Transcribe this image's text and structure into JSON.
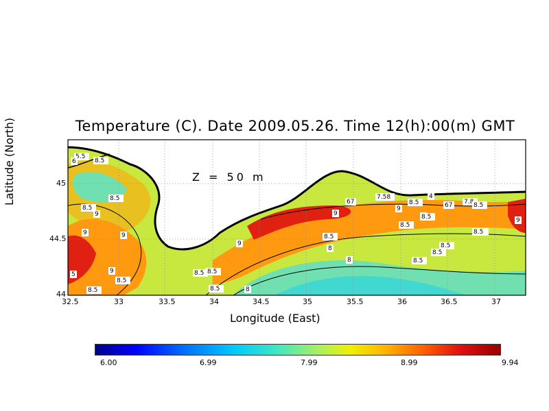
{
  "title": "Temperature (C). Date 2009.05.26. Time 12(h):00(m) GMT",
  "depth_label": "Z = 50 m",
  "xlabel": "Longitude (East)",
  "ylabel": "Latitude (North)",
  "x_ticks": [
    "32.5",
    "33",
    "33.5",
    "34",
    "34.5",
    "35",
    "35.5",
    "36",
    "36.5",
    "37"
  ],
  "y_ticks": [
    "44",
    "44.5",
    "45"
  ],
  "colorbar": {
    "ticks": [
      "6.00",
      "6.99",
      "7.99",
      "8.99",
      "9.94"
    ],
    "min": 6.0,
    "max": 9.94,
    "colors": [
      "#00008b",
      "#0000ff",
      "#00c8ff",
      "#a8f060",
      "#f0f000",
      "#ffb000",
      "#ff6000",
      "#e01010",
      "#9a0000"
    ]
  },
  "contour_labels": [
    "5.5",
    "8.5",
    "6",
    "8.5",
    "8.5",
    "9",
    "9",
    "9",
    "8.5",
    "9",
    "8.5",
    "5",
    "9",
    "8.5",
    "8.5",
    "8.5",
    "9",
    "8",
    "8",
    "9",
    "8.5",
    "8.5",
    "8",
    "9",
    "7.58",
    "67",
    "8.5",
    "4",
    "67",
    "7.8",
    "8.5",
    "8.5",
    "8.5",
    "8.5",
    "8.5",
    "8.5",
    "8.5",
    "8.5",
    "9"
  ]
}
